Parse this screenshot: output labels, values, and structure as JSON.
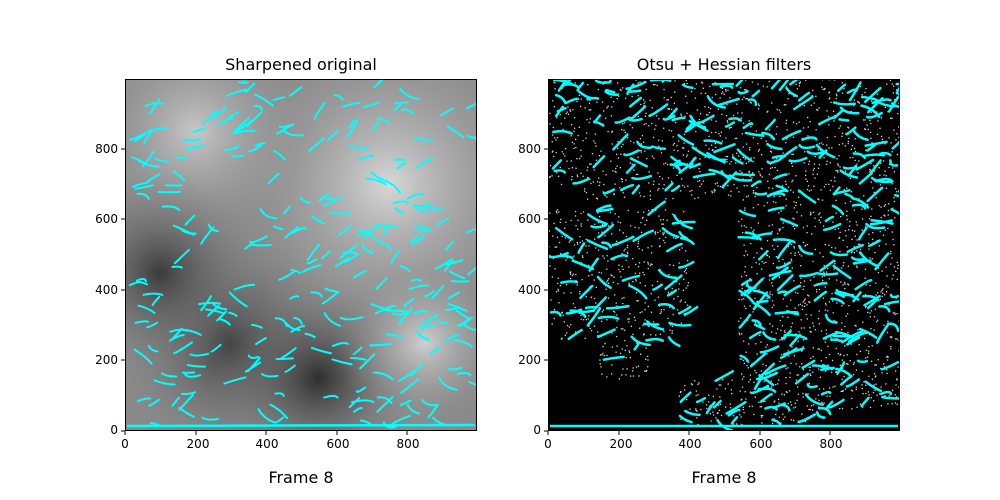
{
  "colors": {
    "overlay": "#00ffff",
    "left_background": "#8a8a8a",
    "right_background": "#000000",
    "dots": "#d9d9d9"
  },
  "panels": [
    {
      "title": "Sharpened original",
      "frame_label": "Frame 8",
      "x_ticks": [
        "0",
        "200",
        "400",
        "600",
        "800"
      ],
      "y_ticks": [
        "0",
        "200",
        "400",
        "600",
        "800"
      ]
    },
    {
      "title": "Otsu + Hessian filters",
      "frame_label": "Frame 8",
      "x_ticks": [
        "0",
        "200",
        "400",
        "600",
        "800"
      ],
      "y_ticks": [
        "0",
        "200",
        "400",
        "600",
        "800"
      ]
    }
  ]
}
